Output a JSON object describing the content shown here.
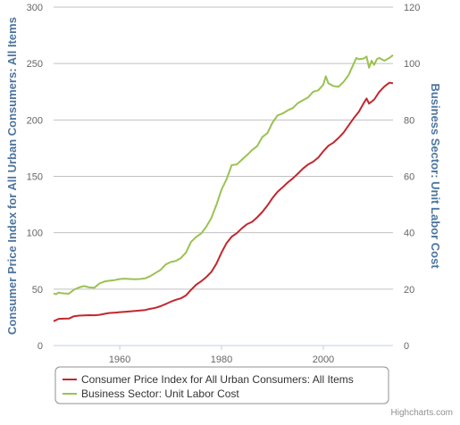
{
  "chart_data": {
    "type": "line",
    "title": "",
    "xlabel": "",
    "ylabel_left": "Consumer Price Index for All Urban Consumers: All Items",
    "ylabel_right": "Business Sector: Unit Labor Cost",
    "x_ticks": [
      "1960",
      "1980",
      "2000"
    ],
    "xlim": [
      1947,
      2013.7
    ],
    "y_left_ticks": [
      "0",
      "50",
      "100",
      "150",
      "200",
      "250",
      "300"
    ],
    "y_left_lim": [
      0,
      300
    ],
    "y_right_ticks": [
      "0",
      "20",
      "40",
      "60",
      "80",
      "100",
      "120"
    ],
    "y_right_lim": [
      0,
      120
    ],
    "grid": true,
    "legend_position": "bottom",
    "series": [
      {
        "name": "Consumer Price Index for All Urban Consumers: All Items",
        "axis": "left",
        "color": "#c0282e",
        "x": [
          1947,
          1948,
          1949,
          1950,
          1951,
          1952,
          1953,
          1954,
          1955,
          1956,
          1957,
          1958,
          1959,
          1960,
          1961,
          1962,
          1963,
          1964,
          1965,
          1966,
          1967,
          1968,
          1969,
          1970,
          1971,
          1972,
          1973,
          1974,
          1975,
          1976,
          1977,
          1978,
          1979,
          1980,
          1981,
          1982,
          1983,
          1984,
          1985,
          1986,
          1987,
          1988,
          1989,
          1990,
          1991,
          1992,
          1993,
          1994,
          1995,
          1996,
          1997,
          1998,
          1999,
          2000,
          2001,
          2002,
          2003,
          2004,
          2005,
          2006,
          2007,
          2008,
          2008.5,
          2009,
          2010,
          2011,
          2012,
          2013,
          2013.7
        ],
        "y": [
          21.5,
          23.7,
          23.8,
          23.9,
          26.0,
          26.5,
          26.7,
          26.9,
          26.8,
          27.2,
          28.1,
          28.9,
          29.1,
          29.6,
          29.9,
          30.2,
          30.6,
          31.0,
          31.5,
          32.5,
          33.4,
          34.8,
          36.7,
          38.8,
          40.5,
          41.8,
          44.4,
          49.3,
          53.8,
          56.9,
          60.6,
          65.2,
          72.6,
          82.4,
          90.9,
          96.5,
          99.6,
          103.9,
          107.6,
          109.6,
          113.6,
          118.3,
          124.0,
          130.7,
          136.2,
          140.3,
          144.5,
          148.2,
          152.4,
          156.9,
          160.5,
          163.0,
          166.6,
          172.2,
          177.1,
          179.9,
          184.0,
          188.9,
          195.3,
          201.6,
          207.3,
          215.3,
          219.0,
          214.5,
          218.1,
          224.9,
          229.6,
          233.0,
          232.5
        ]
      },
      {
        "name": "Business Sector: Unit Labor Cost",
        "axis": "right",
        "color": "#9bc253",
        "x": [
          1947,
          1947.5,
          1948,
          1948.5,
          1949,
          1950,
          1951,
          1952,
          1953,
          1954,
          1955,
          1956,
          1957,
          1958,
          1959,
          1960,
          1961,
          1962,
          1963,
          1964,
          1965,
          1966,
          1967,
          1968,
          1969,
          1970,
          1971,
          1972,
          1973,
          1974,
          1975,
          1976,
          1977,
          1978,
          1979,
          1980,
          1981,
          1982,
          1983,
          1984,
          1985,
          1986,
          1987,
          1988,
          1989,
          1990,
          1991,
          1992,
          1993,
          1994,
          1995,
          1996,
          1997,
          1998,
          1999,
          2000,
          2000.5,
          2001,
          2002,
          2003,
          2004,
          2005,
          2006,
          2006.5,
          2007,
          2008,
          2008.5,
          2009,
          2009.5,
          2010,
          2010.5,
          2011,
          2012,
          2013,
          2013.7
        ],
        "y": [
          18.5,
          18.2,
          18.8,
          18.6,
          18.5,
          18.4,
          19.8,
          20.6,
          21.1,
          20.6,
          20.5,
          22.0,
          22.7,
          23.0,
          23.2,
          23.6,
          23.7,
          23.6,
          23.5,
          23.6,
          23.8,
          24.6,
          25.7,
          26.8,
          28.7,
          29.6,
          30.0,
          31.0,
          32.9,
          36.7,
          38.5,
          39.7,
          42.1,
          45.2,
          49.9,
          55.3,
          59.0,
          64.0,
          64.2,
          65.9,
          67.5,
          69.3,
          70.7,
          73.9,
          75.3,
          79.0,
          81.6,
          82.3,
          83.4,
          84.2,
          86.0,
          87.0,
          88.0,
          90.0,
          90.5,
          92.5,
          95.5,
          93.0,
          92.0,
          91.8,
          93.5,
          96.0,
          100.0,
          102.0,
          101.5,
          101.8,
          102.5,
          98.5,
          101.0,
          99.5,
          101.5,
          102.0,
          101.0,
          102.0,
          103.0
        ]
      }
    ],
    "credits": "Highcharts.com"
  }
}
